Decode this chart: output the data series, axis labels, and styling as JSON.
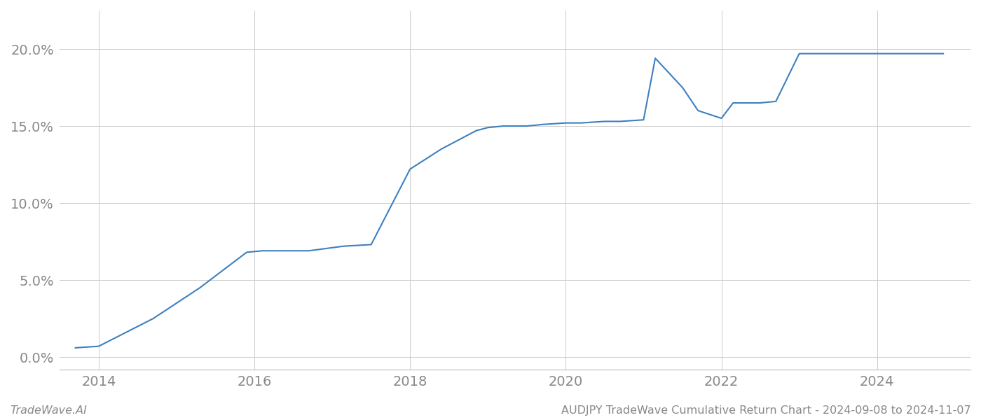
{
  "x_years": [
    2013.7,
    2014.0,
    2014.7,
    2015.3,
    2015.9,
    2016.1,
    2016.4,
    2016.7,
    2016.85,
    2017.0,
    2017.15,
    2017.5,
    2018.0,
    2018.4,
    2018.7,
    2018.85,
    2019.0,
    2019.2,
    2019.5,
    2019.7,
    2020.0,
    2020.2,
    2020.5,
    2020.7,
    2021.0,
    2021.15,
    2021.5,
    2021.7,
    2022.0,
    2022.15,
    2022.5,
    2022.7,
    2023.0,
    2023.3,
    2023.6,
    2023.85,
    2024.0,
    2024.5,
    2024.85
  ],
  "y_values": [
    0.006,
    0.007,
    0.025,
    0.045,
    0.068,
    0.069,
    0.069,
    0.069,
    0.07,
    0.071,
    0.072,
    0.073,
    0.122,
    0.135,
    0.143,
    0.147,
    0.149,
    0.15,
    0.15,
    0.151,
    0.152,
    0.152,
    0.153,
    0.153,
    0.154,
    0.194,
    0.175,
    0.16,
    0.155,
    0.165,
    0.165,
    0.166,
    0.197,
    0.197,
    0.197,
    0.197,
    0.197,
    0.197,
    0.197
  ],
  "line_color": "#3e7fbf",
  "line_width": 1.5,
  "xlim": [
    2013.5,
    2025.2
  ],
  "ylim": [
    -0.008,
    0.225
  ],
  "yticks": [
    0.0,
    0.05,
    0.1,
    0.15,
    0.2
  ],
  "ytick_labels": [
    "0.0%",
    "5.0%",
    "10.0%",
    "15.0%",
    "20.0%"
  ],
  "xticks": [
    2014,
    2016,
    2018,
    2020,
    2022,
    2024
  ],
  "xtick_labels": [
    "2014",
    "2016",
    "2018",
    "2020",
    "2022",
    "2024"
  ],
  "grid_color": "#cccccc",
  "grid_linewidth": 0.7,
  "background_color": "#ffffff",
  "footer_left": "TradeWave.AI",
  "footer_right": "AUDJPY TradeWave Cumulative Return Chart - 2024-09-08 to 2024-11-07",
  "footer_fontsize": 11.5,
  "tick_fontsize": 14,
  "tick_color": "#888888"
}
